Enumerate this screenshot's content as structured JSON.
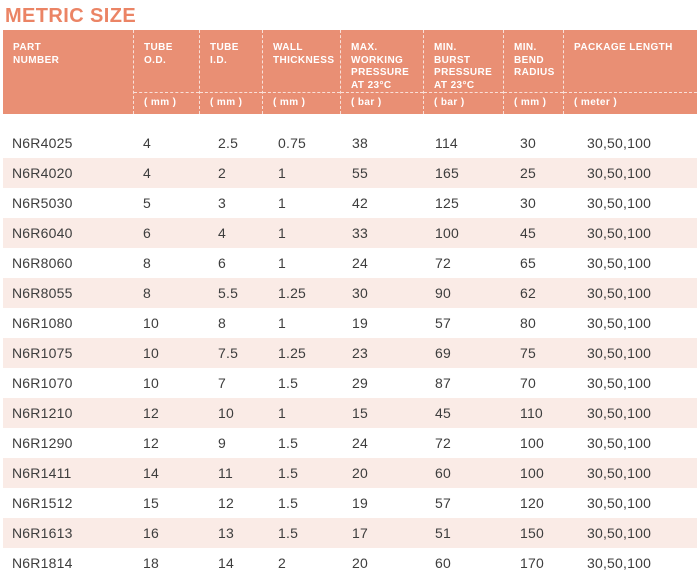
{
  "title": "METRIC SIZE",
  "colors": {
    "accent": "#EB8465",
    "header_bg": "#E98F74",
    "row_alt_bg": "#FAEBE6",
    "text": "#3D3D3D",
    "header_text": "#FFFFFF"
  },
  "table": {
    "columns": [
      {
        "id": "part-number",
        "label": "PART\nNUMBER",
        "unit": ""
      },
      {
        "id": "tube-od",
        "label": "TUBE\nO.D.",
        "unit": "( mm )"
      },
      {
        "id": "tube-id",
        "label": "TUBE\nI.D.",
        "unit": "( mm )"
      },
      {
        "id": "wall-thickness",
        "label": "WALL\nTHICKNESS",
        "unit": "( mm )"
      },
      {
        "id": "max-working-pressure",
        "label": "MAX.\nWORKING\nPRESSURE\nAT 23°C",
        "unit": "( bar )"
      },
      {
        "id": "min-burst-pressure",
        "label": "MIN.\nBURST\nPRESSURE\nAT 23°C",
        "unit": "( bar )"
      },
      {
        "id": "min-bend-radius",
        "label": "MIN.\nBEND\nRADIUS",
        "unit": "( mm )"
      },
      {
        "id": "package-length",
        "label": "PACKAGE LENGTH",
        "unit": "( meter )"
      }
    ],
    "rows": [
      [
        "N6R4025",
        "4",
        "2.5",
        "0.75",
        "38",
        "114",
        "30",
        "30,50,100"
      ],
      [
        "N6R4020",
        "4",
        "2",
        "1",
        "55",
        "165",
        "25",
        "30,50,100"
      ],
      [
        "N6R5030",
        "5",
        "3",
        "1",
        "42",
        "125",
        "30",
        "30,50,100"
      ],
      [
        "N6R6040",
        "6",
        "4",
        "1",
        "33",
        "100",
        "45",
        "30,50,100"
      ],
      [
        "N6R8060",
        "8",
        "6",
        "1",
        "24",
        "72",
        "65",
        "30,50,100"
      ],
      [
        "N6R8055",
        "8",
        "5.5",
        "1.25",
        "30",
        "90",
        "62",
        "30,50,100"
      ],
      [
        "N6R1080",
        "10",
        "8",
        "1",
        "19",
        "57",
        "80",
        "30,50,100"
      ],
      [
        "N6R1075",
        "10",
        "7.5",
        "1.25",
        "23",
        "69",
        "75",
        "30,50,100"
      ],
      [
        "N6R1070",
        "10",
        "7",
        "1.5",
        "29",
        "87",
        "70",
        "30,50,100"
      ],
      [
        "N6R1210",
        "12",
        "10",
        "1",
        "15",
        "45",
        "110",
        "30,50,100"
      ],
      [
        "N6R1290",
        "12",
        "9",
        "1.5",
        "24",
        "72",
        "100",
        "30,50,100"
      ],
      [
        "N6R1411",
        "14",
        "11",
        "1.5",
        "20",
        "60",
        "100",
        "30,50,100"
      ],
      [
        "N6R1512",
        "15",
        "12",
        "1.5",
        "19",
        "57",
        "120",
        "30,50,100"
      ],
      [
        "N6R1613",
        "16",
        "13",
        "1.5",
        "17",
        "51",
        "150",
        "30,50,100"
      ],
      [
        "N6R1814",
        "18",
        "14",
        "2",
        "20",
        "60",
        "170",
        "30,50,100"
      ]
    ]
  }
}
